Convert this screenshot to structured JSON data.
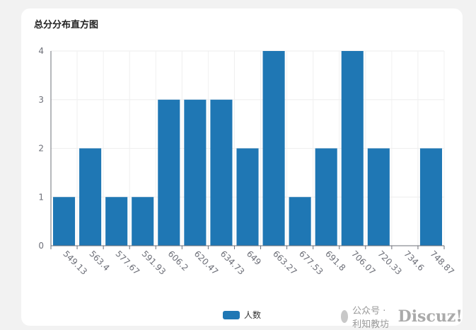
{
  "page": {
    "watermark_text": "公众号 · 利知教坊",
    "watermark_logo": "Discuz!"
  },
  "chart_data": {
    "type": "bar",
    "title": "总分分布直方图",
    "xlabel": "",
    "ylabel": "",
    "categories": [
      "549.13",
      "563.4",
      "577.67",
      "591.93",
      "606.2",
      "620.47",
      "634.73",
      "649",
      "663.27",
      "677.53",
      "691.8",
      "706.07",
      "720.33",
      "734.6",
      "748.87"
    ],
    "series": [
      {
        "name": "人数",
        "values": [
          1,
          2,
          1,
          1,
          3,
          3,
          3,
          2,
          4,
          1,
          2,
          4,
          2,
          0,
          2
        ],
        "color": "#1f77b4"
      }
    ],
    "ylim": [
      0,
      4
    ],
    "yticks": [
      0,
      1,
      2,
      3,
      4
    ],
    "grid": true,
    "legend_position": "bottom"
  }
}
